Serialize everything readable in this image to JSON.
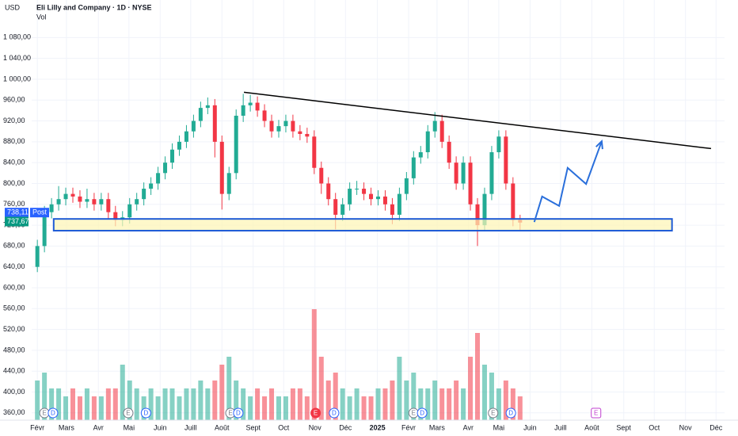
{
  "chart_data": {
    "type": "candlestick",
    "title": "Eli Lilly and Company · 1D · NYSE",
    "currency": "USD",
    "volume_label": "Vol",
    "x": [
      0,
      1,
      2,
      3,
      4,
      5,
      6,
      7,
      8,
      9,
      10,
      11,
      12,
      13,
      14,
      15,
      16,
      17,
      18,
      19,
      20,
      21,
      22,
      23,
      24,
      25,
      26,
      27,
      28,
      29,
      30,
      31,
      32,
      33,
      34,
      35,
      36,
      37,
      38,
      39,
      40,
      41,
      42,
      43,
      44,
      45,
      46,
      47,
      48,
      49,
      50,
      51,
      52,
      53,
      54,
      55,
      56,
      57,
      58,
      59,
      60,
      61,
      62,
      63,
      64,
      65,
      66,
      67,
      68
    ],
    "open": [
      640,
      680,
      745,
      760,
      770,
      780,
      775,
      765,
      770,
      760,
      770,
      745,
      730,
      735,
      760,
      770,
      790,
      800,
      820,
      840,
      865,
      880,
      900,
      920,
      945,
      950,
      880,
      780,
      820,
      930,
      950,
      955,
      940,
      920,
      900,
      910,
      920,
      900,
      895,
      890,
      830,
      800,
      770,
      740,
      760,
      790,
      790,
      780,
      770,
      775,
      760,
      740,
      780,
      810,
      850,
      860,
      900,
      920,
      880,
      840,
      800,
      840,
      760,
      720,
      780,
      860,
      890,
      800,
      730
    ],
    "high": [
      692,
      757,
      772,
      795,
      792,
      792,
      787,
      790,
      782,
      782,
      782,
      757,
      747,
      772,
      782,
      802,
      812,
      832,
      852,
      877,
      892,
      912,
      932,
      957,
      965,
      962,
      892,
      832,
      942,
      972,
      970,
      967,
      952,
      932,
      922,
      932,
      932,
      912,
      907,
      902,
      842,
      812,
      782,
      772,
      802,
      805,
      802,
      792,
      787,
      787,
      772,
      792,
      822,
      862,
      872,
      912,
      937,
      932,
      892,
      852,
      852,
      852,
      772,
      792,
      872,
      902,
      902,
      812,
      740
    ],
    "low": [
      630,
      668,
      733,
      748,
      758,
      763,
      753,
      753,
      748,
      748,
      733,
      718,
      718,
      723,
      748,
      758,
      778,
      788,
      808,
      828,
      853,
      868,
      888,
      908,
      933,
      850,
      750,
      768,
      808,
      918,
      938,
      928,
      908,
      888,
      888,
      898,
      888,
      883,
      878,
      818,
      780,
      758,
      712,
      728,
      748,
      778,
      768,
      758,
      758,
      748,
      722,
      728,
      768,
      798,
      838,
      848,
      888,
      868,
      828,
      788,
      788,
      748,
      680,
      708,
      768,
      848,
      788,
      718,
      710
    ],
    "close": [
      680,
      745,
      760,
      770,
      780,
      775,
      765,
      770,
      760,
      770,
      745,
      730,
      735,
      760,
      770,
      790,
      800,
      820,
      840,
      865,
      880,
      900,
      920,
      945,
      950,
      880,
      780,
      820,
      930,
      950,
      955,
      940,
      920,
      900,
      910,
      920,
      900,
      895,
      890,
      830,
      800,
      770,
      740,
      760,
      790,
      790,
      780,
      770,
      775,
      760,
      740,
      780,
      810,
      850,
      860,
      900,
      920,
      880,
      840,
      800,
      840,
      760,
      720,
      780,
      860,
      890,
      800,
      730,
      725
    ],
    "volume": [
      5,
      6,
      4,
      4,
      3,
      4,
      3,
      4,
      3,
      3,
      4,
      4,
      7,
      5,
      4,
      3,
      4,
      3,
      4,
      4,
      3,
      4,
      4,
      5,
      4,
      5,
      7,
      8,
      5,
      4,
      3,
      4,
      3,
      4,
      3,
      3,
      4,
      4,
      3,
      14,
      8,
      5,
      6,
      4,
      3,
      4,
      3,
      3,
      4,
      4,
      5,
      8,
      5,
      6,
      4,
      4,
      5,
      4,
      4,
      5,
      4,
      8,
      11,
      7,
      6,
      4,
      5,
      4,
      3
    ],
    "up_color": "#22ab94",
    "down_color": "#f23645",
    "ylim": [
      346,
      1152
    ],
    "yticks": [
      {
        "value": 360,
        "label": "360,00"
      },
      {
        "value": 400,
        "label": "400,00"
      },
      {
        "value": 440,
        "label": "440,00"
      },
      {
        "value": 480,
        "label": "480,00"
      },
      {
        "value": 520,
        "label": "520,00"
      },
      {
        "value": 560,
        "label": "560,00"
      },
      {
        "value": 600,
        "label": "600,00"
      },
      {
        "value": 640,
        "label": "640,00"
      },
      {
        "value": 680,
        "label": "680,00"
      },
      {
        "value": 720,
        "label": "720,00"
      },
      {
        "value": 760,
        "label": "760,00"
      },
      {
        "value": 800,
        "label": "800,00"
      },
      {
        "value": 840,
        "label": "840,00"
      },
      {
        "value": 880,
        "label": "880,00"
      },
      {
        "value": 920,
        "label": "920,00"
      },
      {
        "value": 960,
        "label": "960,00"
      },
      {
        "value": 1000,
        "label": "1 000,00"
      },
      {
        "value": 1040,
        "label": "1 040,00"
      },
      {
        "value": 1080,
        "label": "1 080,00"
      }
    ],
    "xlim": [
      -0.8,
      96.8
    ],
    "xticks": [
      {
        "value": 0,
        "label": "Févr"
      },
      {
        "value": 4.1,
        "label": "Mars"
      },
      {
        "value": 8.6,
        "label": "Avr"
      },
      {
        "value": 12.9,
        "label": "Mai"
      },
      {
        "value": 17.3,
        "label": "Juin"
      },
      {
        "value": 21.6,
        "label": "Juill"
      },
      {
        "value": 26,
        "label": "Août"
      },
      {
        "value": 30.4,
        "label": "Sept"
      },
      {
        "value": 34.7,
        "label": "Oct"
      },
      {
        "value": 39.1,
        "label": "Nov"
      },
      {
        "value": 43.4,
        "label": "Déc"
      },
      {
        "value": 47.9,
        "label": "2025"
      },
      {
        "value": 52.3,
        "label": "Févr"
      },
      {
        "value": 56.3,
        "label": "Mars"
      },
      {
        "value": 60.7,
        "label": "Avr"
      },
      {
        "value": 65,
        "label": "Mai"
      },
      {
        "value": 69.4,
        "label": "Juin"
      },
      {
        "value": 73.7,
        "label": "Juill"
      },
      {
        "value": 78.1,
        "label": "Août"
      },
      {
        "value": 82.6,
        "label": "Sept"
      },
      {
        "value": 86.9,
        "label": "Oct"
      },
      {
        "value": 91.3,
        "label": "Nov"
      },
      {
        "value": 95.6,
        "label": "Déc"
      }
    ],
    "grid": true,
    "trendline": {
      "x": [
        29.1,
        94.9
      ],
      "y": [
        975,
        867
      ],
      "color": "#000000"
    },
    "support_zone": {
      "x": [
        2.3,
        89.4
      ],
      "y": [
        709.5,
        732
      ],
      "color": "#1e5bd6",
      "fill": "#fdf5b4"
    },
    "projection": {
      "x": [
        70,
        71.1,
        73.5,
        74.7,
        77.3,
        79.5
      ],
      "y": [
        726,
        775,
        757,
        830,
        799,
        881
      ],
      "color": "#2a6fdb"
    },
    "price_labels": [
      {
        "value": 738.11,
        "label": "738,11",
        "color": "#2962ff",
        "tag": "Post"
      },
      {
        "value": 737.67,
        "label": "737,67",
        "color": "#089981"
      }
    ],
    "events": [
      {
        "x": 1.0,
        "label": "E",
        "color": "#787b86"
      },
      {
        "x": 2.2,
        "label": "D",
        "color": "#2962ff"
      },
      {
        "x": 12.8,
        "label": "E",
        "color": "#787b86"
      },
      {
        "x": 15.3,
        "label": "D",
        "color": "#2962ff"
      },
      {
        "x": 27.2,
        "label": "E",
        "color": "#787b86"
      },
      {
        "x": 28.3,
        "label": "D",
        "color": "#2962ff"
      },
      {
        "x": 39.2,
        "label": "E",
        "color": "#f23645"
      },
      {
        "x": 41.8,
        "label": "D",
        "color": "#2962ff"
      },
      {
        "x": 53.0,
        "label": "E",
        "color": "#787b86"
      },
      {
        "x": 54.2,
        "label": "D",
        "color": "#2962ff"
      },
      {
        "x": 64.2,
        "label": "E",
        "color": "#787b86"
      },
      {
        "x": 66.7,
        "label": "D",
        "color": "#2962ff"
      },
      {
        "x": 78.7,
        "label": "E",
        "color": "#c040d0"
      }
    ]
  }
}
